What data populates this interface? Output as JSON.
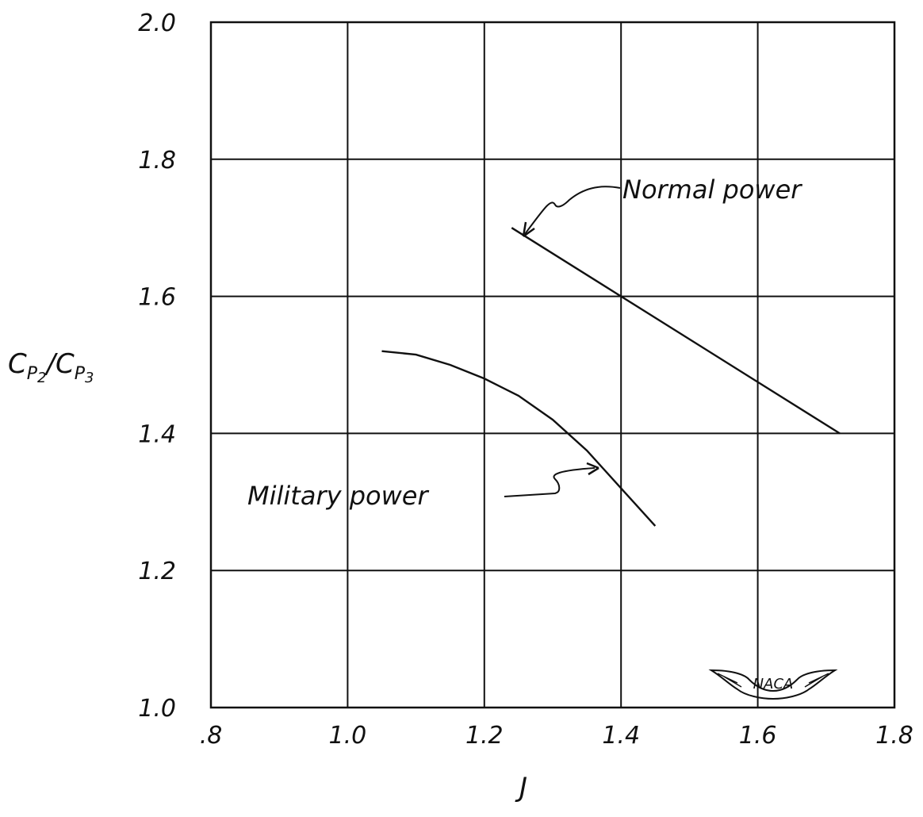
{
  "chart_data": {
    "type": "line",
    "xlabel": "J",
    "ylabel": "C_P2/C_P3",
    "xlim": [
      0.8,
      1.8
    ],
    "ylim": [
      1.0,
      2.0
    ],
    "x_ticks": [
      ".8",
      "1.0",
      "1.2",
      "1.4",
      "1.6",
      "1.8"
    ],
    "y_ticks": [
      "1.0",
      "1.2",
      "1.4",
      "1.6",
      "1.8",
      "2.0"
    ],
    "grid": true,
    "series": [
      {
        "name": "Normal power",
        "x": [
          1.24,
          1.4,
          1.6,
          1.72
        ],
        "y": [
          1.7,
          1.6,
          1.475,
          1.4
        ]
      },
      {
        "name": "Military power",
        "x": [
          1.05,
          1.1,
          1.15,
          1.2,
          1.25,
          1.3,
          1.35,
          1.4,
          1.45
        ],
        "y": [
          1.52,
          1.515,
          1.5,
          1.48,
          1.455,
          1.42,
          1.375,
          1.32,
          1.265
        ]
      }
    ],
    "annotations": [
      "Normal power",
      "Military power"
    ],
    "logo_text": "NACA"
  }
}
